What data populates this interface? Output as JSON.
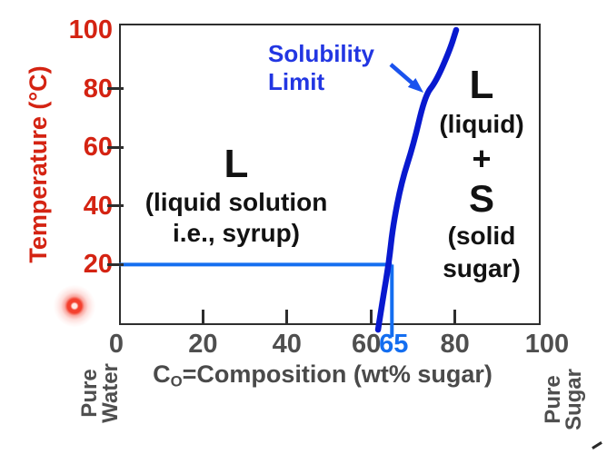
{
  "y_axis": {
    "title": "Temperature (°C)",
    "tick_values": [
      100,
      80,
      60,
      40,
      20
    ],
    "tick_labels": [
      "100",
      "80",
      "60",
      "40",
      "20"
    ],
    "color": "#d42312"
  },
  "x_axis": {
    "title_c": "C",
    "title_sub": "O",
    "title_rest": "=Composition (wt% sugar)",
    "tick_values": [
      0,
      20,
      40,
      60,
      80,
      100
    ],
    "tick_labels": [
      "0",
      "20",
      "40",
      "60",
      "80",
      "100"
    ],
    "special_tick": {
      "label": "65",
      "value": 65,
      "color": "#146ef0"
    },
    "color": "#4f4f4f"
  },
  "corner_labels": {
    "bottom_left": [
      "Pure",
      "Water"
    ],
    "bottom_right": [
      "Pure",
      "Sugar"
    ]
  },
  "annotation": {
    "line1": "Solubility",
    "line2": "Limit",
    "color": "#2236e2",
    "arrow_color": "#1a53ee"
  },
  "regions": {
    "liquid": {
      "symbol": "L",
      "desc_line1": "(liquid solution",
      "desc_line2": "i.e., syrup)"
    },
    "two_phase": {
      "symbol_l": "L",
      "desc_l": "(liquid)",
      "plus": "+",
      "symbol_s": "S",
      "desc_s_line1": "(solid",
      "desc_s_line2": "sugar)"
    }
  },
  "chart_data": {
    "type": "line",
    "xlabel": "CO=Composition (wt% sugar)",
    "ylabel": "Temperature (°C)",
    "xlim": [
      0,
      100
    ],
    "ylim": [
      0,
      100
    ],
    "x_ticks": [
      0,
      20,
      40,
      60,
      80,
      100
    ],
    "y_ticks": [
      20,
      40,
      60,
      80,
      100
    ],
    "grid": false,
    "legend": false,
    "series": [
      {
        "name": "Solubility Limit",
        "points_composition_temperature": [
          [
            61.7,
            -2.2
          ],
          [
            62.8,
            8.0
          ],
          [
            64.3,
            20.7
          ],
          [
            65.2,
            32.8
          ],
          [
            67.3,
            48.3
          ],
          [
            70.1,
            60.7
          ],
          [
            72.9,
            77.7
          ],
          [
            75.5,
            82.4
          ],
          [
            78.8,
            93.2
          ],
          [
            80.3,
            100.0
          ]
        ],
        "color": "#0819cf"
      }
    ],
    "tie_line": {
      "temperature_C": 20,
      "composition_wt_pct": 65,
      "color": "#146ef0"
    },
    "region_labels": [
      "L (liquid solution i.e., syrup)",
      "L (liquid) + S (solid sugar)"
    ],
    "annotations": [
      "Solubility Limit"
    ]
  }
}
